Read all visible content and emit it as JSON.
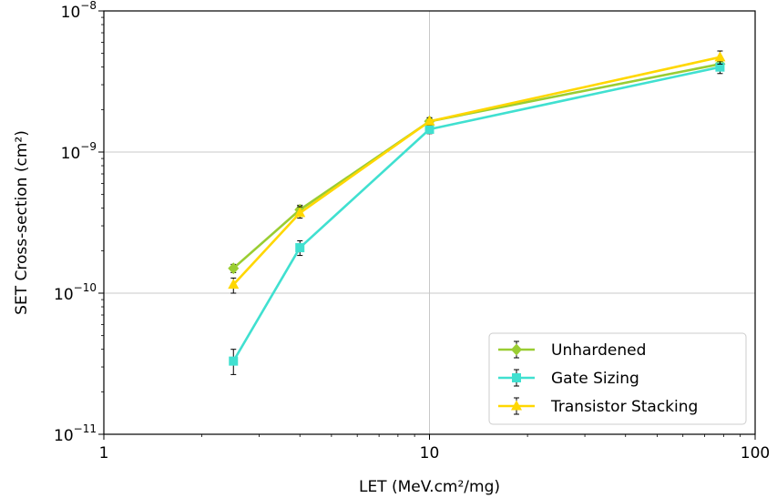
{
  "chart_data": {
    "type": "line",
    "xlabel": "LET (MeV.cm²/mg)",
    "ylabel": "SET Cross-section (cm²)",
    "xscale": "log",
    "yscale": "log",
    "xlim": [
      1,
      100
    ],
    "ylim": [
      1e-11,
      1e-08
    ],
    "x_ticks": [
      {
        "value": 1,
        "label": "1"
      },
      {
        "value": 10,
        "label": "10"
      },
      {
        "value": 100,
        "label": "100"
      }
    ],
    "y_ticks": [
      {
        "value": 1e-11,
        "base": "10",
        "exp": "−11"
      },
      {
        "value": 1e-10,
        "base": "10",
        "exp": "−10"
      },
      {
        "value": 1e-09,
        "base": "10",
        "exp": "−9"
      },
      {
        "value": 1e-08,
        "base": "10",
        "exp": "−8"
      }
    ],
    "grid": true,
    "legend_position": "bottom-right",
    "series": [
      {
        "name": "Unhardened",
        "color": "#9acd32",
        "marker": "diamond",
        "x": [
          2.5,
          4,
          10,
          78
        ],
        "y": [
          1.5e-10,
          3.9e-10,
          1.65e-09,
          4.2e-09
        ],
        "err": [
          [
            1.4e-10,
            1.6e-10
          ],
          [
            3.6e-10,
            4.2e-10
          ],
          [
            1.55e-09,
            1.75e-09
          ],
          [
            3.8e-09,
            4.7e-09
          ]
        ]
      },
      {
        "name": "Gate Sizing",
        "color": "#40e0d0",
        "marker": "square",
        "x": [
          2.5,
          4,
          10,
          78
        ],
        "y": [
          3.3e-11,
          2.1e-10,
          1.45e-09,
          4e-09
        ],
        "err": [
          [
            2.65e-11,
            4e-11
          ],
          [
            1.85e-10,
            2.35e-10
          ],
          [
            1.35e-09,
            1.55e-09
          ],
          [
            3.6e-09,
            4.4e-09
          ]
        ]
      },
      {
        "name": "Transistor Stacking",
        "color": "#ffd700",
        "marker": "triangle",
        "x": [
          2.5,
          4,
          10,
          78
        ],
        "y": [
          1.15e-10,
          3.7e-10,
          1.65e-09,
          4.7e-09
        ],
        "err": [
          [
            1e-10,
            1.28e-10
          ],
          [
            3.4e-10,
            4.1e-10
          ],
          [
            1.55e-09,
            1.75e-09
          ],
          [
            4.2e-09,
            5.2e-09
          ]
        ]
      }
    ]
  }
}
